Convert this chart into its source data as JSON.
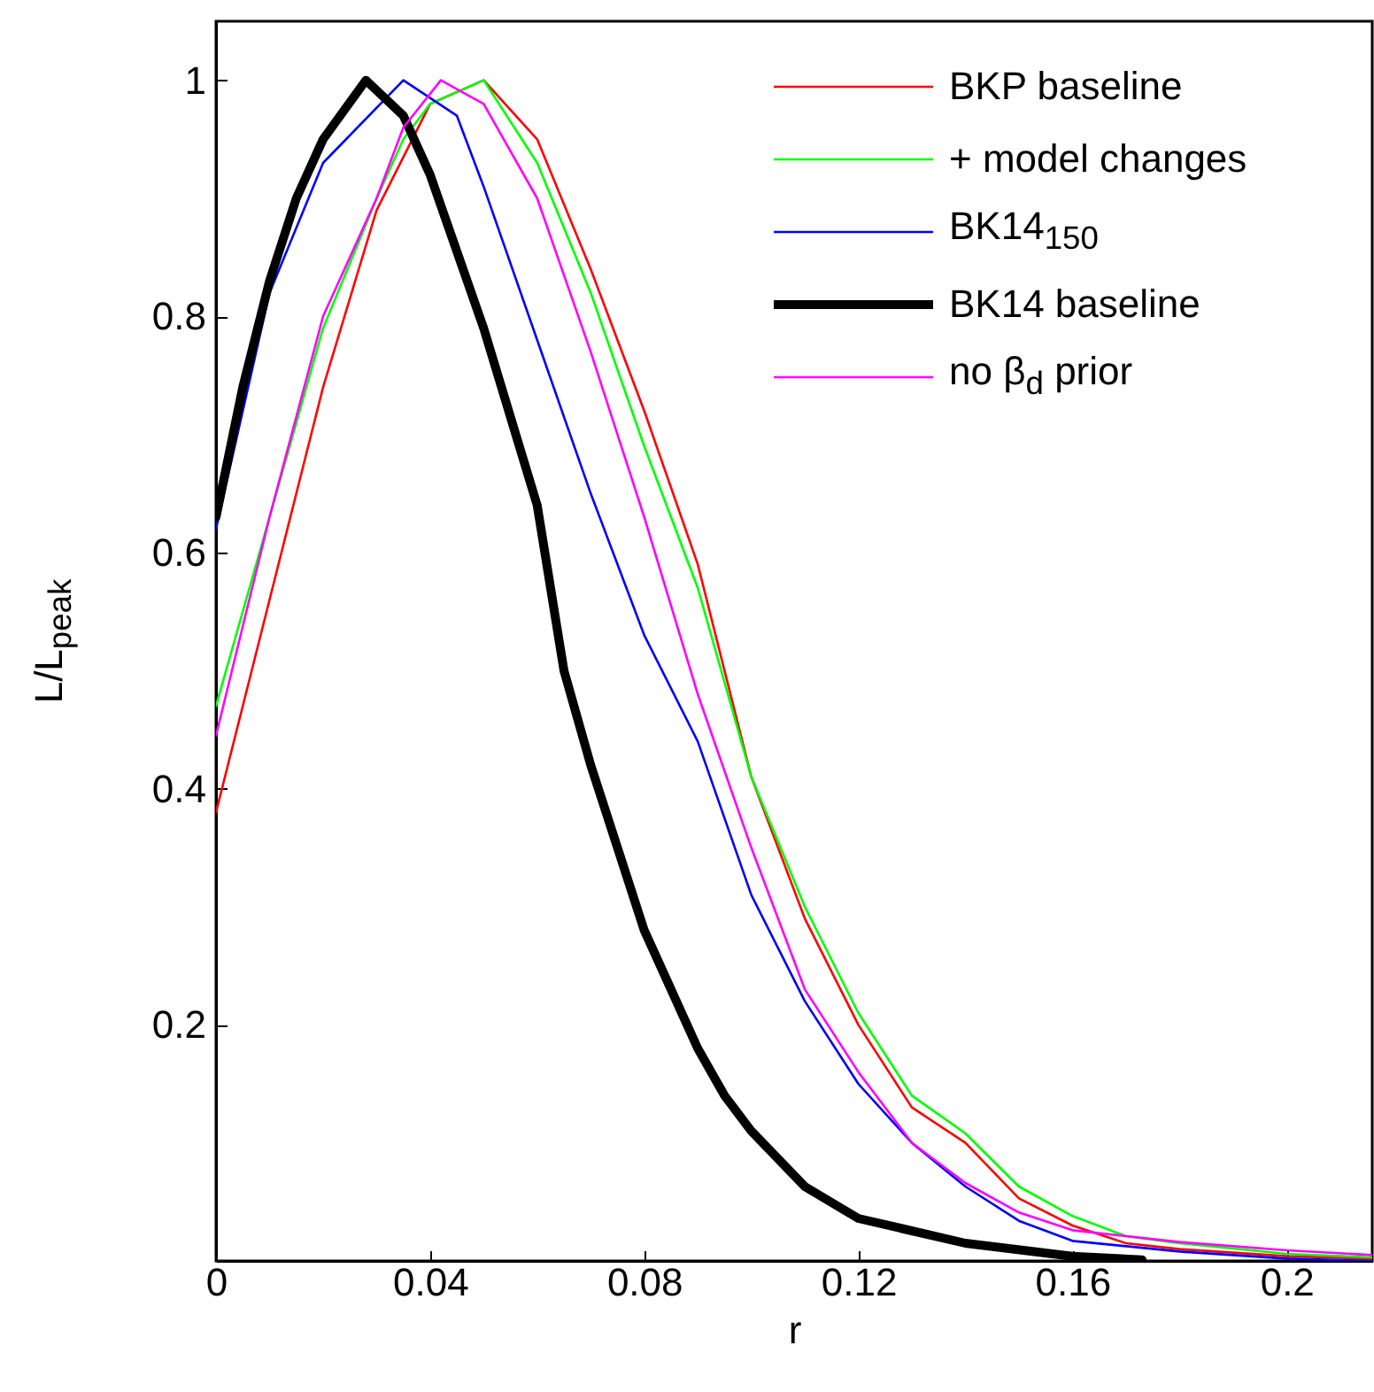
{
  "chart_data": {
    "type": "line",
    "xlabel": "r",
    "ylabel": "L/L$_{peak}$",
    "xlim": [
      0,
      0.216
    ],
    "ylim": [
      0,
      1.05
    ],
    "xticks": [
      0,
      0.04,
      0.08,
      0.12,
      0.16,
      0.2
    ],
    "yticks": [
      0.2,
      0.4,
      0.6,
      0.8,
      1
    ],
    "legend": "top right",
    "grid": false,
    "series": [
      {
        "name": "BKP baseline",
        "color": "#ff0000",
        "x": [
          0,
          0.02,
          0.03,
          0.04,
          0.05,
          0.06,
          0.07,
          0.08,
          0.09,
          0.1,
          0.11,
          0.12,
          0.13,
          0.14,
          0.15,
          0.16,
          0.17,
          0.18,
          0.2,
          0.216
        ],
        "values": [
          0.38,
          0.74,
          0.89,
          0.98,
          1,
          0.95,
          0.84,
          0.72,
          0.59,
          0.41,
          0.29,
          0.2,
          0.13,
          0.1,
          0.053,
          0.03,
          0.015,
          0.01,
          0.004,
          0.002
        ]
      },
      {
        "name": "+ model changes",
        "color": "#00ff00",
        "x": [
          0,
          0.01,
          0.02,
          0.03,
          0.035,
          0.04,
          0.05,
          0.06,
          0.07,
          0.08,
          0.09,
          0.1,
          0.11,
          0.12,
          0.13,
          0.14,
          0.15,
          0.16,
          0.17,
          0.18,
          0.2,
          0.216
        ],
        "values": [
          0.47,
          0.63,
          0.79,
          0.9,
          0.95,
          0.98,
          1,
          0.93,
          0.82,
          0.69,
          0.57,
          0.41,
          0.3,
          0.21,
          0.14,
          0.108,
          0.063,
          0.038,
          0.021,
          0.015,
          0.006,
          0.003
        ]
      },
      {
        "name": "BK14$_{150}$",
        "color": "#0000ff",
        "x": [
          0,
          0.01,
          0.02,
          0.035,
          0.045,
          0.05,
          0.06,
          0.07,
          0.08,
          0.09,
          0.1,
          0.11,
          0.12,
          0.13,
          0.14,
          0.15,
          0.16,
          0.18,
          0.2,
          0.216
        ],
        "values": [
          0.62,
          0.82,
          0.93,
          1,
          0.97,
          0.91,
          0.78,
          0.65,
          0.53,
          0.44,
          0.31,
          0.22,
          0.15,
          0.1,
          0.063,
          0.034,
          0.017,
          0.008,
          0.002,
          0
        ]
      },
      {
        "name": "BK14 baseline",
        "color": "#000000",
        "x": [
          0,
          0.005,
          0.01,
          0.015,
          0.02,
          0.028,
          0.035,
          0.04,
          0.05,
          0.06,
          0.065,
          0.07,
          0.08,
          0.09,
          0.095,
          0.1,
          0.11,
          0.12,
          0.14,
          0.16,
          0.173
        ],
        "values": [
          0.63,
          0.74,
          0.83,
          0.9,
          0.95,
          1,
          0.97,
          0.92,
          0.79,
          0.64,
          0.5,
          0.42,
          0.28,
          0.18,
          0.14,
          0.11,
          0.063,
          0.036,
          0.015,
          0.004,
          0.001
        ]
      },
      {
        "name": "no β$_{d}$ prior",
        "color": "#ff00ff",
        "x": [
          0,
          0.01,
          0.02,
          0.03,
          0.035,
          0.042,
          0.05,
          0.06,
          0.07,
          0.08,
          0.09,
          0.1,
          0.11,
          0.12,
          0.13,
          0.14,
          0.15,
          0.16,
          0.18,
          0.2,
          0.216
        ],
        "values": [
          0.445,
          0.63,
          0.8,
          0.9,
          0.96,
          1,
          0.98,
          0.9,
          0.77,
          0.63,
          0.48,
          0.35,
          0.23,
          0.16,
          0.1,
          0.066,
          0.041,
          0.026,
          0.016,
          0.009,
          0.005
        ]
      }
    ]
  }
}
